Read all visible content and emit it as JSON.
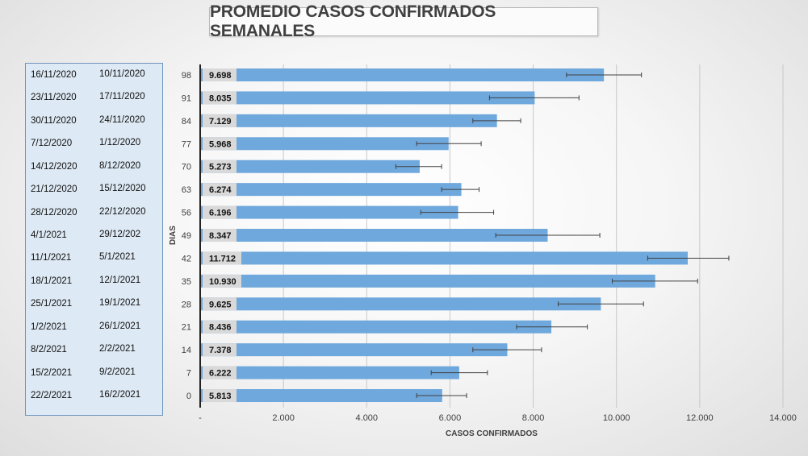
{
  "chart_data": {
    "type": "bar",
    "orientation": "horizontal",
    "title": "PROMEDIO CASOS CONFIRMADOS SEMANALES",
    "xlabel": "CASOS CONFIRMADOS",
    "ylabel": "DIAS",
    "xlim": [
      0,
      14000
    ],
    "x_ticks": [
      "-",
      "2.000",
      "4.000",
      "6.000",
      "8.000",
      "10.000",
      "12.000",
      "14.000"
    ],
    "grid": true,
    "categories": [
      "98",
      "91",
      "84",
      "77",
      "70",
      "63",
      "56",
      "49",
      "42",
      "35",
      "28",
      "21",
      "14",
      "7",
      "0"
    ],
    "values": [
      9698,
      8035,
      7129,
      5968,
      5273,
      6274,
      6196,
      8347,
      11712,
      10930,
      9625,
      8436,
      7378,
      6222,
      5813
    ],
    "labels": [
      "9.698",
      "8.035",
      "7.129",
      "5.968",
      "5.273",
      "6.274",
      "6.196",
      "8.347",
      "11.712",
      "10.930",
      "9.625",
      "8.436",
      "7.378",
      "6.222",
      "5.813"
    ],
    "error_low": [
      8800,
      6950,
      6550,
      5200,
      4700,
      5800,
      5300,
      7100,
      10750,
      9900,
      8600,
      7600,
      6550,
      5550,
      5200
    ],
    "error_high": [
      10600,
      9100,
      7700,
      6750,
      5800,
      6700,
      7050,
      9600,
      12700,
      11950,
      10650,
      9300,
      8200,
      6900,
      6400
    ],
    "bar_color": "#6fa8dc"
  },
  "date_ranges": [
    {
      "end": "16/11/2020",
      "start": "10/11/2020"
    },
    {
      "end": "23/11/2020",
      "start": "17/11/2020"
    },
    {
      "end": "30/11/2020",
      "start": "24/11/2020"
    },
    {
      "end": "7/12/2020",
      "start": "1/12/2020"
    },
    {
      "end": "14/12/2020",
      "start": "8/12/2020"
    },
    {
      "end": "21/12/2020",
      "start": "15/12/2020"
    },
    {
      "end": "28/12/2020",
      "start": "22/12/2020"
    },
    {
      "end": "4/1/2021",
      "start": "29/12/202"
    },
    {
      "end": "11/1/2021",
      "start": "5/1/2021"
    },
    {
      "end": "18/1/2021",
      "start": "12/1/2021"
    },
    {
      "end": "25/1/2021",
      "start": "19/1/2021"
    },
    {
      "end": "1/2/2021",
      "start": "26/1/2021"
    },
    {
      "end": "8/2/2021",
      "start": "2/2/2021"
    },
    {
      "end": "15/2/2021",
      "start": "9/2/2021"
    },
    {
      "end": "22/2/2021",
      "start": "16/2/2021"
    }
  ]
}
